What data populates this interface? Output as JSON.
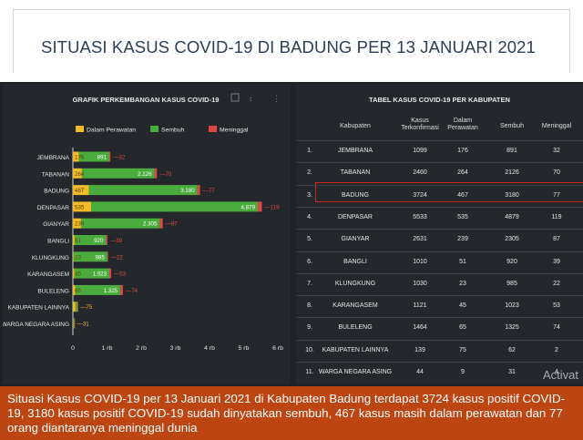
{
  "header": {
    "title": "SITUASI KASUS COVID-19 DI BADUNG PER 13 JANUARI 2021"
  },
  "chart_data": {
    "type": "bar",
    "stacked": true,
    "orientation": "horizontal",
    "title": "GRAFIK PERKEMBANGAN KASUS COVID-19",
    "categories": [
      "JEMBRANA",
      "TABANAN",
      "BADUNG",
      "DENPASAR",
      "GIANYAR",
      "BANGLI",
      "KLUNGKUNG",
      "KARANGASEM",
      "BULELENG",
      "KABUPATEN LAINNYA",
      "WARGA NEGARA ASING"
    ],
    "series": [
      {
        "name": "Dalam Perawatan",
        "color": "#f2b928",
        "values": [
          176,
          264,
          467,
          535,
          239,
          51,
          23,
          45,
          65,
          75,
          9
        ]
      },
      {
        "name": "Sembuh",
        "color": "#4bac3e",
        "values": [
          891,
          2126,
          3180,
          4879,
          2305,
          920,
          985,
          1023,
          1325,
          62,
          31
        ]
      },
      {
        "name": "Meninggal",
        "color": "#e04646",
        "values": [
          32,
          70,
          77,
          119,
          87,
          39,
          22,
          53,
          74,
          2,
          4
        ]
      }
    ],
    "segment_labels": [
      [
        "176",
        "891",
        "32"
      ],
      [
        "264",
        "2.126",
        "70"
      ],
      [
        "467",
        "3.180",
        "77"
      ],
      [
        "535",
        "4.879",
        "119"
      ],
      [
        "239",
        "2.305",
        "87"
      ],
      [
        "51",
        "920",
        "39"
      ],
      [
        "23",
        "985",
        "22"
      ],
      [
        "45",
        "1.023",
        "53"
      ],
      [
        "65",
        "1.325",
        "74"
      ],
      [
        "",
        "",
        "75"
      ],
      [
        "",
        "",
        "31"
      ]
    ],
    "xticks": [
      "0",
      "1 rb",
      "2 rb",
      "3 rb",
      "4 rb",
      "5 rb",
      "6 rb"
    ],
    "xlim": [
      0,
      6000
    ],
    "legend_position": "top"
  },
  "table": {
    "title": "TABEL KASUS COVID-19 PER KABUPATEN",
    "headers": {
      "kabupaten": "Kabupaten",
      "terkonfirmasi": "Kasus Terkonfirmasi",
      "perawatan": "Dalam Perawatan",
      "sembuh": "Sembuh",
      "meninggal": "Meninggal"
    },
    "rows": [
      {
        "no": "1.",
        "kabupaten": "JEMBRANA",
        "terkonfirmasi": "1099",
        "perawatan": "176",
        "sembuh": "891",
        "meninggal": "32"
      },
      {
        "no": "2.",
        "kabupaten": "TABANAN",
        "terkonfirmasi": "2460",
        "perawatan": "264",
        "sembuh": "2126",
        "meninggal": "70"
      },
      {
        "no": "3.",
        "kabupaten": "BADUNG",
        "terkonfirmasi": "3724",
        "perawatan": "467",
        "sembuh": "3180",
        "meninggal": "77"
      },
      {
        "no": "4.",
        "kabupaten": "DENPASAR",
        "terkonfirmasi": "5533",
        "perawatan": "535",
        "sembuh": "4879",
        "meninggal": "119"
      },
      {
        "no": "5.",
        "kabupaten": "GIANYAR",
        "terkonfirmasi": "2631",
        "perawatan": "239",
        "sembuh": "2305",
        "meninggal": "87"
      },
      {
        "no": "6.",
        "kabupaten": "BANGLI",
        "terkonfirmasi": "1010",
        "perawatan": "51",
        "sembuh": "920",
        "meninggal": "39"
      },
      {
        "no": "7.",
        "kabupaten": "KLUNGKUNG",
        "terkonfirmasi": "1030",
        "perawatan": "23",
        "sembuh": "985",
        "meninggal": "22"
      },
      {
        "no": "8.",
        "kabupaten": "KARANGASEM",
        "terkonfirmasi": "1121",
        "perawatan": "45",
        "sembuh": "1023",
        "meninggal": "53"
      },
      {
        "no": "9.",
        "kabupaten": "BULELENG",
        "terkonfirmasi": "1464",
        "perawatan": "65",
        "sembuh": "1325",
        "meninggal": "74"
      },
      {
        "no": "10.",
        "kabupaten": "KABUPATEN LAINNYA",
        "terkonfirmasi": "139",
        "perawatan": "75",
        "sembuh": "62",
        "meninggal": "2"
      },
      {
        "no": "11.",
        "kabupaten": "WARGA NEGARA ASING",
        "terkonfirmasi": "44",
        "perawatan": "9",
        "sembuh": "31",
        "meninggal": "4"
      }
    ],
    "highlight": "BADUNG"
  },
  "watermark": "Activat",
  "caption": "Situasi Kasus COVID-19 per 13 Januari 2021 di Kabupaten Badung terdapat 3724 kasus positif COVID-19, 3180 kasus positif COVID-19 sudah dinyatakan sembuh, 467 kasus masih dalam perawatan dan 77 orang diantaranya meninggal dunia"
}
